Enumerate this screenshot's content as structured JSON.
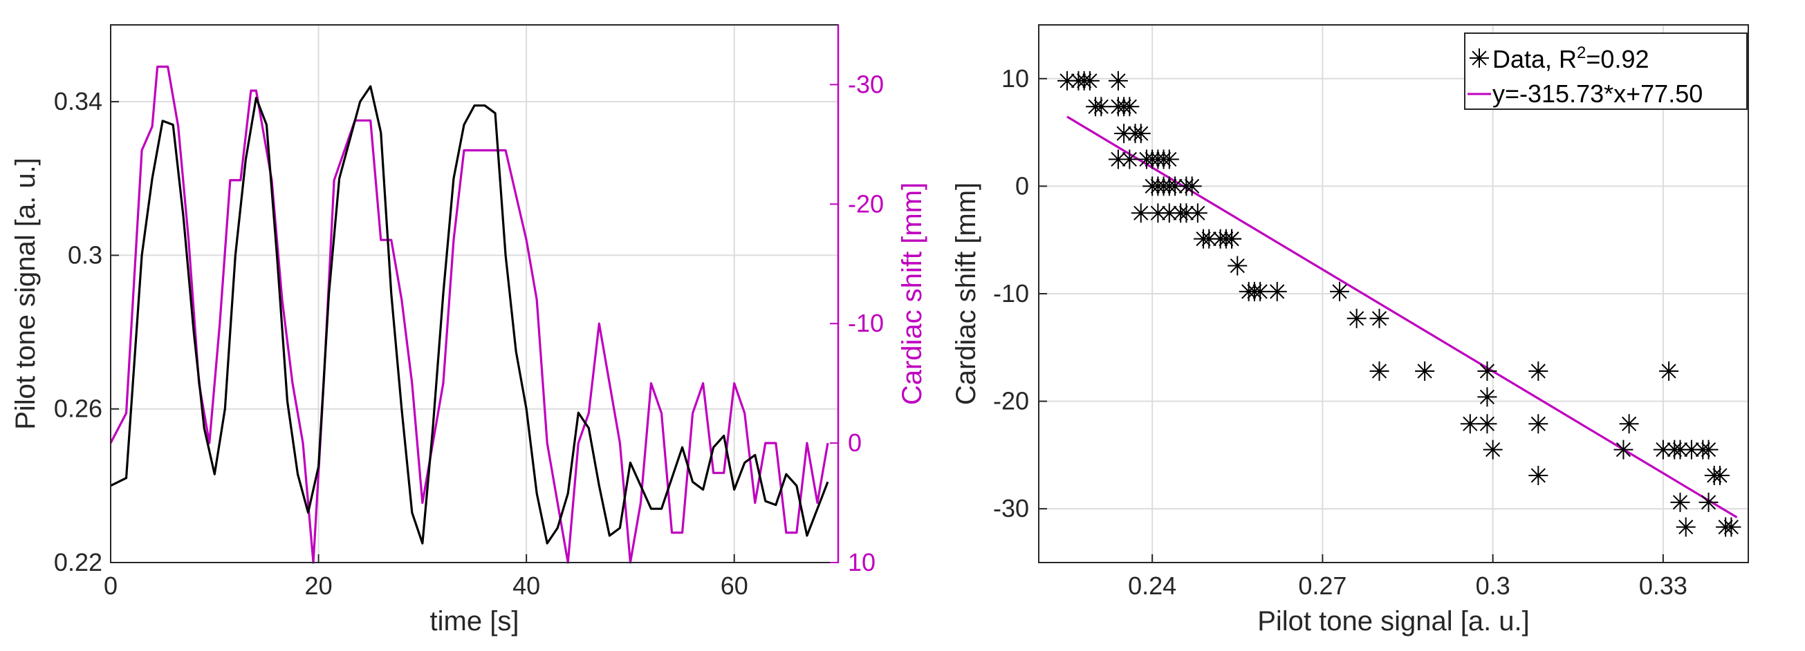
{
  "colors": {
    "ps": "#000000",
    "cardiac": "#bf00bf",
    "axis": "#262626",
    "grid": "#dcdcdc"
  },
  "chart_data": [
    {
      "type": "line",
      "xlabel": "time [s]",
      "ylabel_left": "Pilot tone signal [a. u.]",
      "ylabel_right": "Cardiac shift [mm]",
      "xlim": [
        0,
        70
      ],
      "ylim_left": [
        0.22,
        0.36
      ],
      "ylim_right": [
        10,
        -35
      ],
      "right_axis_reversed": true,
      "xticks": [
        0,
        20,
        40,
        60
      ],
      "xtick_labels": [
        "0",
        "20",
        "40",
        "60"
      ],
      "yticks_left": [
        0.22,
        0.26,
        0.3,
        0.34
      ],
      "ytick_labels_left": [
        "0.22",
        "0.26",
        "0.3",
        "0.34"
      ],
      "yticks_right": [
        10,
        0,
        -10,
        -20,
        -30
      ],
      "ytick_labels_right": [
        "10",
        "0",
        "-10",
        "-20",
        "-30"
      ],
      "grid": true,
      "series": [
        {
          "name": "Pilot tone signal",
          "axis": "left",
          "x": [
            0,
            1.5,
            3,
            4,
            5,
            6,
            7,
            8,
            9,
            10,
            11,
            12,
            13,
            14,
            15,
            16,
            17,
            18,
            19,
            20,
            21,
            22,
            23,
            24,
            25,
            26,
            27,
            28,
            29,
            30,
            31,
            32,
            33,
            34,
            35,
            36,
            37,
            38,
            39,
            40,
            41,
            42,
            43,
            44,
            45,
            46,
            47,
            48,
            49,
            50,
            51,
            52,
            53,
            54,
            55,
            56,
            57,
            58,
            59,
            60,
            61,
            62,
            63,
            64,
            65,
            66,
            67,
            68,
            69
          ],
          "y": [
            0.24,
            0.242,
            0.3,
            0.32,
            0.335,
            0.334,
            0.31,
            0.28,
            0.255,
            0.243,
            0.26,
            0.3,
            0.325,
            0.341,
            0.334,
            0.3,
            0.262,
            0.243,
            0.233,
            0.245,
            0.29,
            0.32,
            0.33,
            0.34,
            0.344,
            0.332,
            0.29,
            0.26,
            0.233,
            0.225,
            0.255,
            0.29,
            0.32,
            0.334,
            0.339,
            0.339,
            0.337,
            0.3,
            0.275,
            0.26,
            0.238,
            0.225,
            0.229,
            0.238,
            0.259,
            0.255,
            0.24,
            0.227,
            0.229,
            0.246,
            0.24,
            0.234,
            0.234,
            0.242,
            0.25,
            0.241,
            0.239,
            0.25,
            0.253,
            0.239,
            0.246,
            0.248,
            0.236,
            0.235,
            0.243,
            0.24,
            0.227,
            0.234,
            0.241
          ]
        },
        {
          "name": "Cardiac shift",
          "axis": "right",
          "x": [
            0,
            1.5,
            3,
            4,
            4.5,
            5.5,
            6.5,
            7.5,
            8.5,
            9.5,
            10.5,
            11.5,
            12.5,
            13.5,
            14,
            15.5,
            16.5,
            17.5,
            18.5,
            19.5,
            20.5,
            21.5,
            22.5,
            23.5,
            24,
            25,
            26,
            27,
            28,
            29,
            30,
            31,
            32,
            33,
            34,
            36,
            38,
            40,
            41,
            42,
            43,
            44,
            45,
            46,
            47,
            48,
            49,
            50,
            51,
            52,
            53,
            54,
            55,
            56,
            57,
            58,
            59,
            60,
            61,
            62,
            63,
            64,
            65,
            66,
            67,
            68,
            69
          ],
          "y": [
            0,
            -2.5,
            -24.5,
            -26.5,
            -31.5,
            -31.5,
            -26.5,
            -17,
            -5,
            0,
            -10,
            -22,
            -22,
            -29.5,
            -29.5,
            -22,
            -12,
            -5,
            0,
            10,
            -5,
            -22,
            -24.5,
            -27,
            -27,
            -27,
            -17,
            -17,
            -12,
            -5,
            5,
            0,
            -5,
            -17,
            -24.5,
            -24.5,
            -24.5,
            -17,
            -12,
            0,
            5,
            10,
            0,
            -2.5,
            -10,
            -5,
            0,
            10,
            5,
            -5,
            -2.5,
            7.5,
            7.5,
            -2.5,
            -5,
            2.5,
            2.5,
            -5,
            -2.5,
            5,
            0,
            0,
            7.5,
            7.5,
            0,
            5,
            0
          ]
        }
      ]
    },
    {
      "type": "scatter",
      "xlabel": "Pilot tone signal [a. u.]",
      "ylabel": "Cardiac shift [mm]",
      "xlim": [
        0.22,
        0.345
      ],
      "ylim": [
        -35,
        15
      ],
      "xticks": [
        0.24,
        0.27,
        0.3,
        0.33
      ],
      "xtick_labels": [
        "0.24",
        "0.27",
        "0.3",
        "0.33"
      ],
      "yticks": [
        -30,
        -20,
        -10,
        0,
        10
      ],
      "ytick_labels": [
        "-30",
        "-20",
        "-10",
        "0",
        "10"
      ],
      "grid": true,
      "legend": {
        "location": "top-right",
        "data_label": "Data, R",
        "r2_superscript": "2",
        "r2_value": "=0.92",
        "fit_label": "y=-315.73*x+77.50"
      },
      "fit": {
        "slope": -315.73,
        "intercept": 77.5,
        "x_range": [
          0.225,
          0.343
        ]
      },
      "points": {
        "x": [
          0.225,
          0.227,
          0.228,
          0.229,
          0.23,
          0.231,
          0.234,
          0.235,
          0.236,
          0.234,
          0.235,
          0.237,
          0.238,
          0.234,
          0.236,
          0.239,
          0.24,
          0.241,
          0.242,
          0.243,
          0.24,
          0.241,
          0.242,
          0.243,
          0.244,
          0.246,
          0.247,
          0.238,
          0.241,
          0.243,
          0.245,
          0.246,
          0.248,
          0.249,
          0.25,
          0.252,
          0.253,
          0.254,
          0.254,
          0.255,
          0.257,
          0.258,
          0.259,
          0.262,
          0.273,
          0.276,
          0.28,
          0.28,
          0.288,
          0.296,
          0.299,
          0.299,
          0.3,
          0.299,
          0.308,
          0.308,
          0.308,
          0.324,
          0.323,
          0.331,
          0.33,
          0.332,
          0.333,
          0.335,
          0.337,
          0.338,
          0.339,
          0.338,
          0.34,
          0.341,
          0.342,
          0.333,
          0.334
        ],
        "y": [
          9.8,
          9.8,
          9.8,
          9.8,
          7.4,
          7.4,
          9.8,
          7.4,
          7.4,
          7.4,
          4.9,
          4.9,
          4.9,
          2.5,
          2.5,
          2.5,
          2.5,
          2.5,
          2.5,
          2.5,
          0,
          0,
          0,
          0,
          0,
          0,
          0,
          -2.5,
          -2.5,
          -2.5,
          -2.5,
          -2.5,
          -2.5,
          -4.9,
          -4.9,
          -4.9,
          -4.9,
          -4.9,
          -4.9,
          -7.4,
          -9.8,
          -9.8,
          -9.8,
          -9.8,
          -9.8,
          -12.3,
          -12.3,
          -17.2,
          -17.2,
          -22.1,
          -19.6,
          -22.1,
          -24.5,
          -17.2,
          -22.1,
          -26.9,
          -17.2,
          -22.1,
          -24.5,
          -17.2,
          -24.5,
          -24.5,
          -24.5,
          -24.5,
          -24.5,
          -24.5,
          -26.9,
          -29.4,
          -26.9,
          -31.7,
          -31.7,
          -29.4,
          -31.7
        ]
      }
    }
  ]
}
